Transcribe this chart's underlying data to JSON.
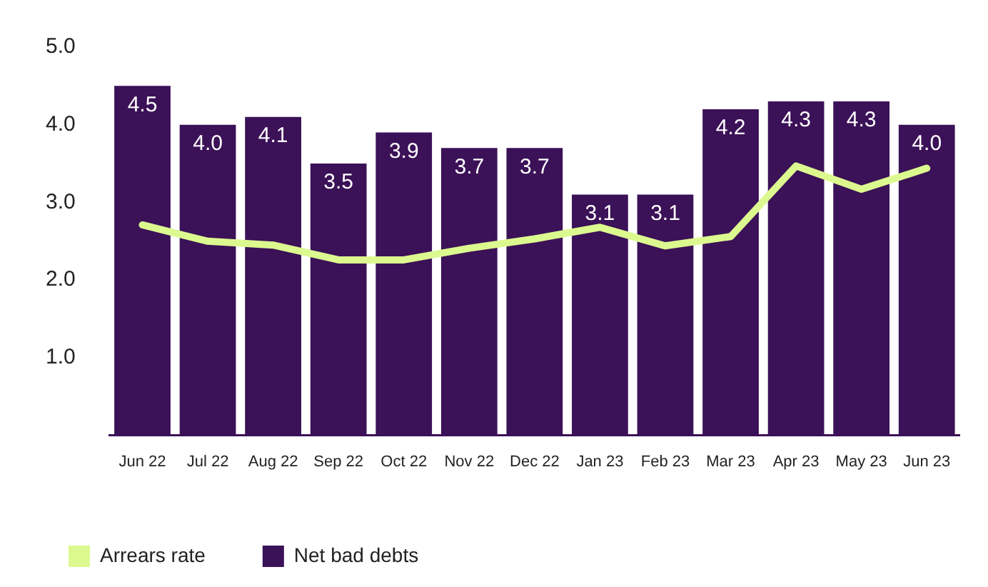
{
  "chart_data": {
    "type": "bar",
    "categories": [
      "Jun 22",
      "Jul 22",
      "Aug 22",
      "Sep 22",
      "Oct 22",
      "Nov 22",
      "Dec 22",
      "Jan 23",
      "Feb 23",
      "Mar 23",
      "Apr 23",
      "May 23",
      "Jun 23"
    ],
    "series": [
      {
        "name": "Arrears rate",
        "type": "line",
        "color": "#dcf98f",
        "values": [
          2.71,
          2.5,
          2.45,
          2.26,
          2.26,
          2.41,
          2.53,
          2.68,
          2.44,
          2.56,
          3.47,
          3.17,
          3.44
        ]
      },
      {
        "name": "Net bad debts",
        "color": "#3b1157",
        "values": [
          4.5,
          4.0,
          4.1,
          3.5,
          3.9,
          3.7,
          3.7,
          3.1,
          3.1,
          4.2,
          4.3,
          4.3,
          4.0
        ],
        "value_labels": [
          "4.5",
          "4.0",
          "4.1",
          "3.5",
          "3.9",
          "3.7",
          "3.7",
          "3.1",
          "3.1",
          "4.2",
          "4.3",
          "4.3",
          "4.0"
        ]
      }
    ],
    "ylim": [
      0,
      5
    ],
    "yticks": [
      {
        "value": 1,
        "label": "1.0"
      },
      {
        "value": 2,
        "label": "2.0"
      },
      {
        "value": 3,
        "label": "3.0"
      },
      {
        "value": 4,
        "label": "4.0"
      },
      {
        "value": 5,
        "label": "5.0"
      }
    ],
    "grid": false,
    "legend": "bottom left",
    "marker": "none",
    "line_style": "solid"
  }
}
